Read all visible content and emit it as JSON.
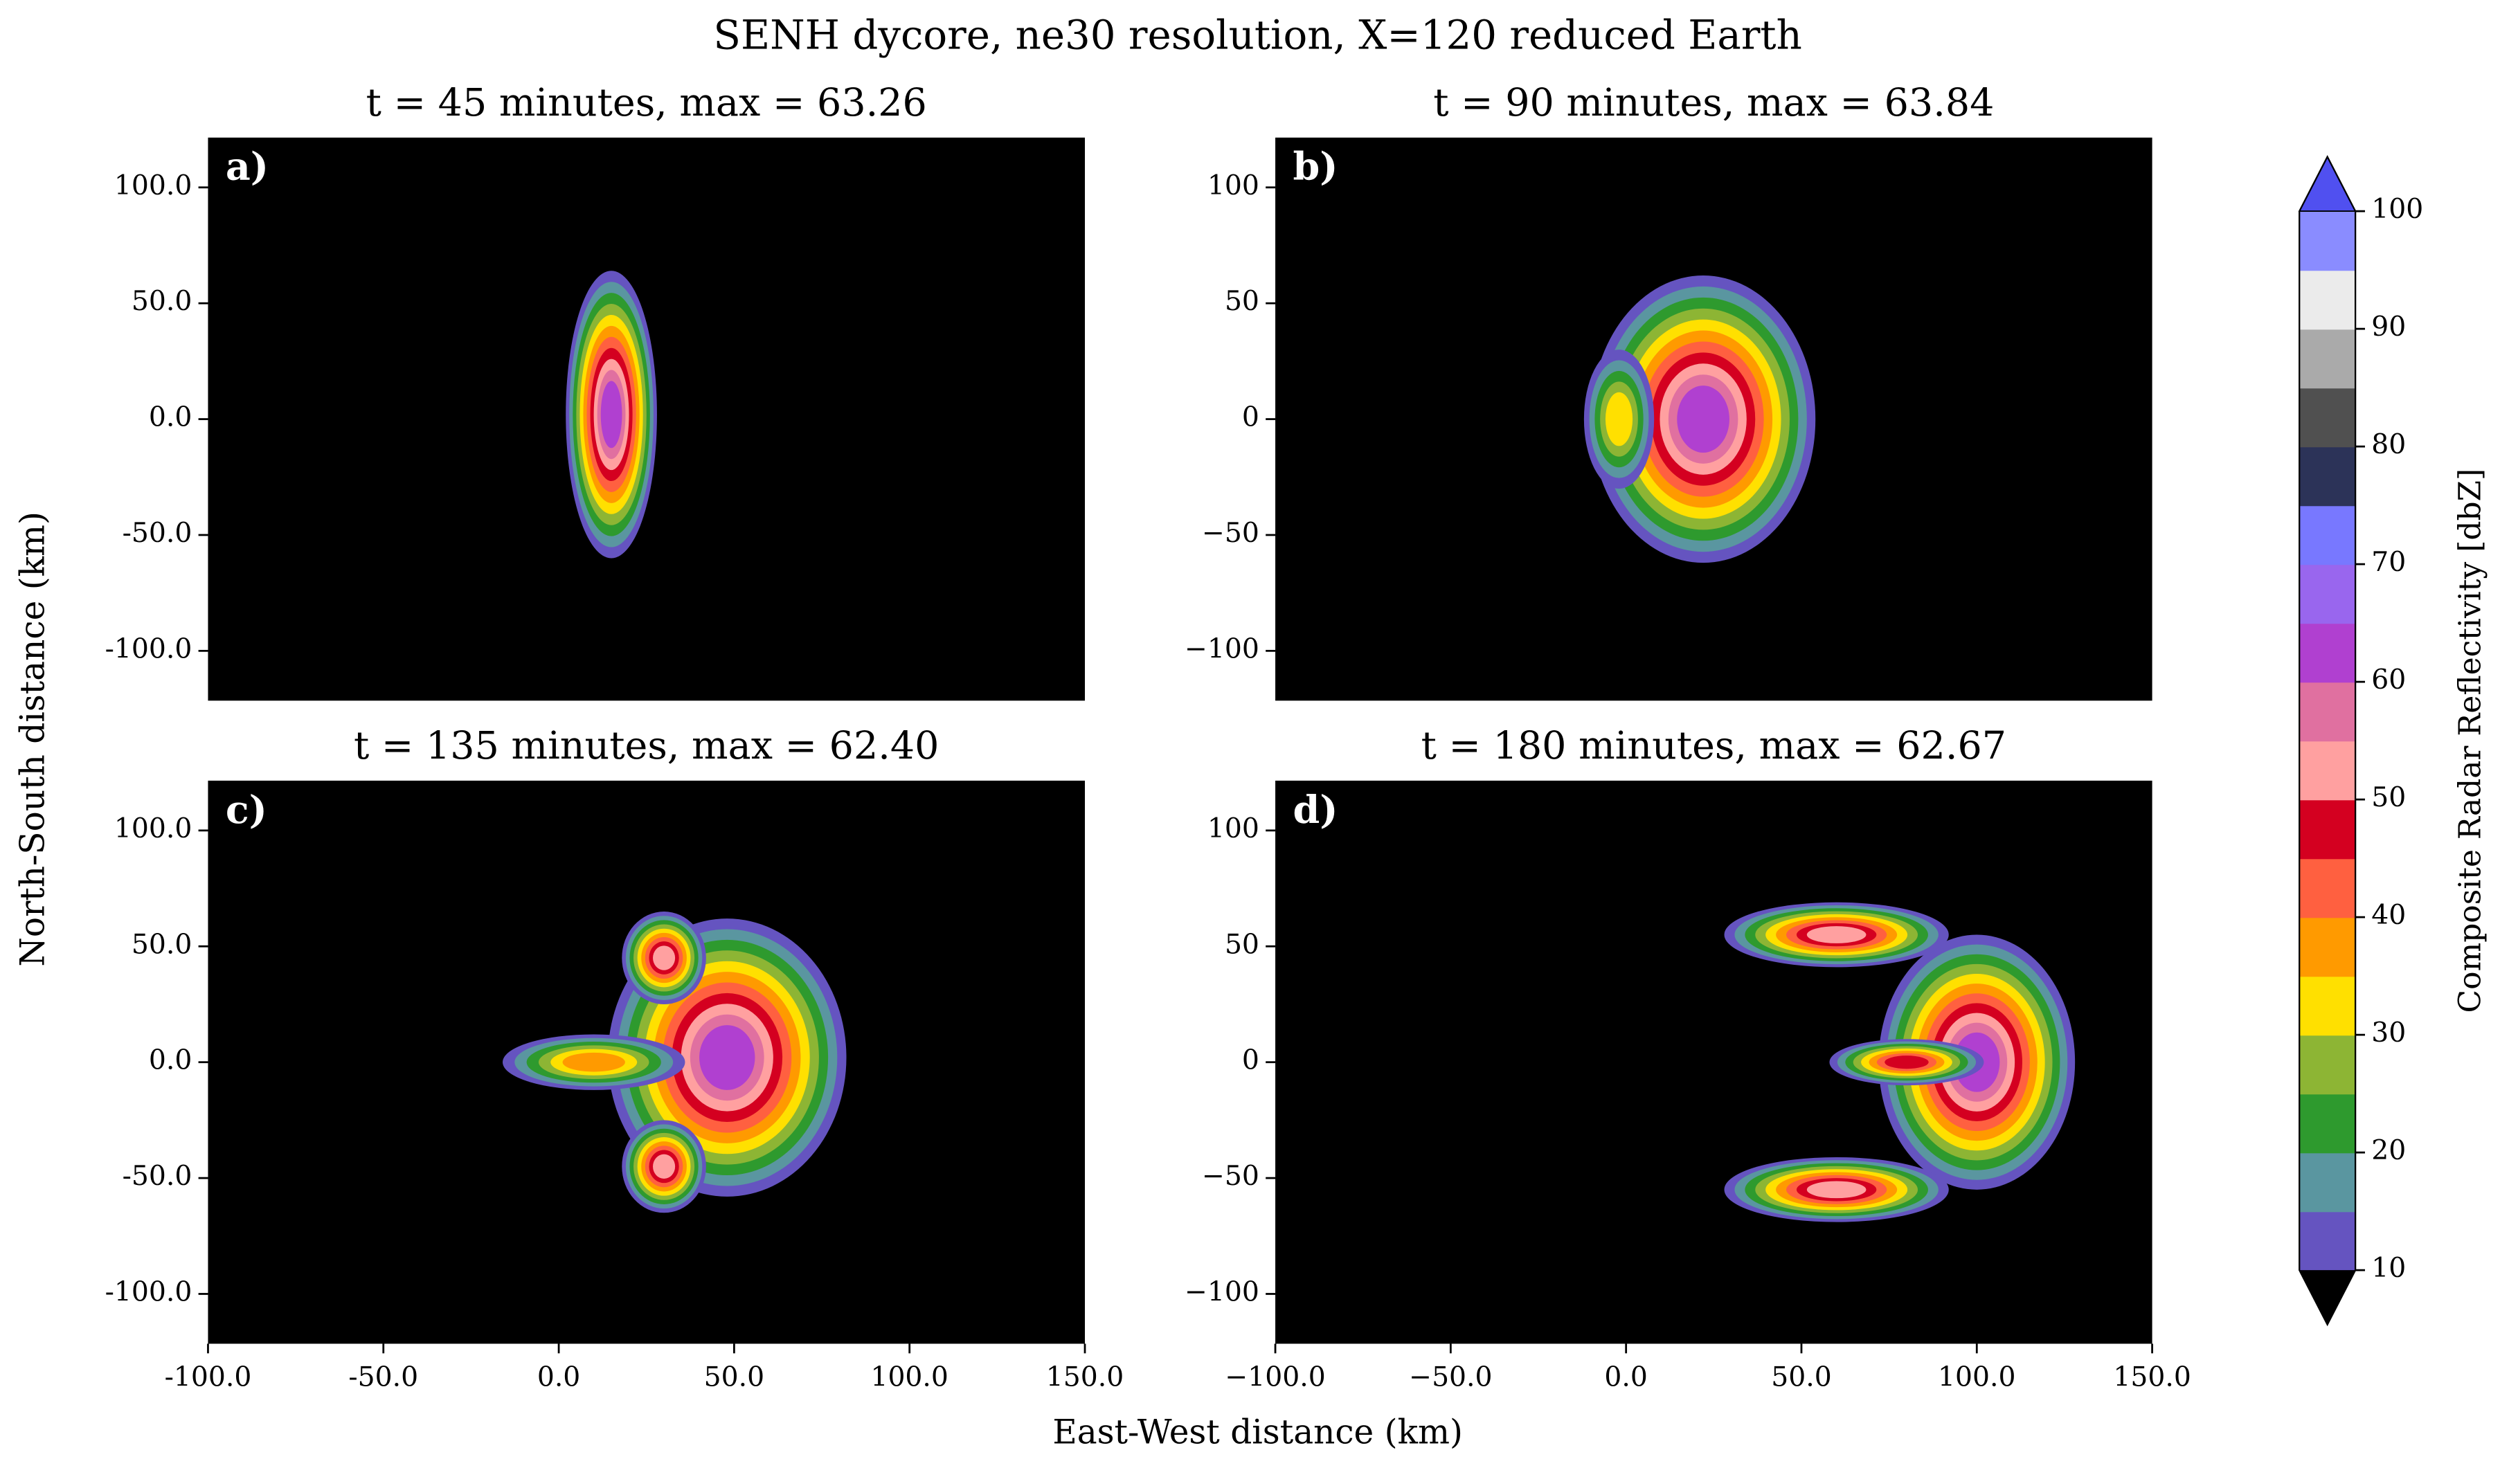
{
  "title": "SENH dycore, ne30 resolution, X=120 reduced Earth",
  "x_label": "East-West distance (km)",
  "y_label": "North-South distance (km)",
  "chart_data": [
    {
      "type": "contour",
      "title": "t = 45 minutes, max = 63.26",
      "panel_label": "a)",
      "xlim": [
        -100,
        150
      ],
      "ylim": [
        -121.5,
        121.5
      ],
      "yticks": [
        {
          "value": 100,
          "label": "100.0"
        },
        {
          "value": 50,
          "label": "50.0"
        },
        {
          "value": 0,
          "label": "0.0"
        },
        {
          "value": -50,
          "label": "-50.0"
        },
        {
          "value": -100,
          "label": "-100.0"
        }
      ]
    },
    {
      "type": "contour",
      "title": "t = 90 minutes, max = 63.84",
      "panel_label": "b)",
      "xlim": [
        -100,
        150
      ],
      "ylim": [
        -121.5,
        121.5
      ],
      "yticks": [
        100,
        50,
        0,
        {
          "value": -50,
          "label": "−50"
        },
        {
          "value": -100,
          "label": "−100"
        }
      ]
    },
    {
      "type": "contour",
      "title": "t = 135 minutes, max = 62.40",
      "panel_label": "c)",
      "xlim": [
        -100,
        150
      ],
      "ylim": [
        -121.5,
        121.5
      ],
      "xticks": [
        {
          "value": -100,
          "label": "-100.0"
        },
        {
          "value": -50,
          "label": "-50.0"
        },
        {
          "value": 0,
          "label": "0.0"
        },
        {
          "value": 50,
          "label": "50.0"
        },
        {
          "value": 100,
          "label": "100.0"
        },
        {
          "value": 150,
          "label": "150.0"
        }
      ],
      "yticks": [
        {
          "value": 100,
          "label": "100.0"
        },
        {
          "value": 50,
          "label": "50.0"
        },
        {
          "value": 0,
          "label": "0.0"
        },
        {
          "value": -50,
          "label": "-50.0"
        },
        {
          "value": -100,
          "label": "-100.0"
        }
      ]
    },
    {
      "type": "contour",
      "title": "t = 180 minutes, max = 62.67",
      "panel_label": "d)",
      "xlim": [
        -100,
        150
      ],
      "ylim": [
        -121.5,
        121.5
      ],
      "xticks": [
        {
          "value": -100,
          "label": "−100.0"
        },
        {
          "value": -50,
          "label": "−50.0"
        },
        {
          "value": 0,
          "label": "0.0"
        },
        {
          "value": 50,
          "label": "50.0"
        },
        {
          "value": 100,
          "label": "100.0"
        },
        {
          "value": 150,
          "label": "150.0"
        }
      ],
      "yticks": [
        100,
        50,
        0,
        {
          "value": -50,
          "label": "−50"
        },
        {
          "value": -100,
          "label": "−100"
        }
      ]
    }
  ],
  "colorbar": {
    "label": "Composite Radar Reflectivity [dbZ]",
    "levels": [
      10,
      15,
      20,
      25,
      30,
      35,
      40,
      45,
      50,
      55,
      60,
      65,
      70,
      75,
      80,
      85,
      90,
      95,
      100
    ],
    "colors": [
      "#6554c0",
      "#5a96a0",
      "#2e9a2e",
      "#8db534",
      "#ffe000",
      "#ff9a00",
      "#ff6040",
      "#d40020",
      "#ffa0a0",
      "#e070a0",
      "#b040d0",
      "#9966ee",
      "#7878ff",
      "#2c3358",
      "#505050",
      "#aaaaaa",
      "#ebebeb",
      "#8a8cff"
    ],
    "over_color": "#5050f0",
    "under_color": "#000000",
    "ticks": [
      10,
      20,
      30,
      40,
      50,
      60,
      70,
      80,
      90,
      100
    ]
  }
}
